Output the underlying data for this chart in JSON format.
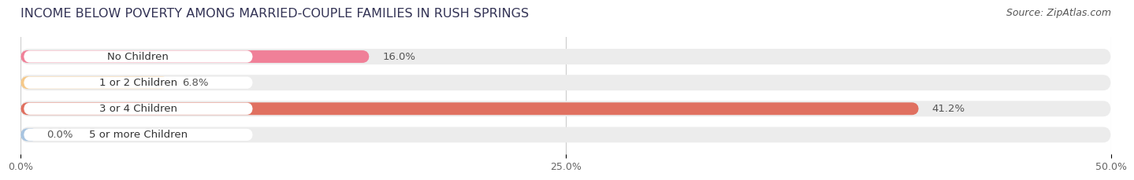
{
  "title": "INCOME BELOW POVERTY AMONG MARRIED-COUPLE FAMILIES IN RUSH SPRINGS",
  "source": "Source: ZipAtlas.com",
  "categories": [
    "No Children",
    "1 or 2 Children",
    "3 or 4 Children",
    "5 or more Children"
  ],
  "values": [
    16.0,
    6.8,
    41.2,
    0.0
  ],
  "bar_colors": [
    "#f08098",
    "#f5c98a",
    "#e07060",
    "#a8c4e0"
  ],
  "xlim": [
    0,
    50
  ],
  "xticks": [
    0.0,
    25.0,
    50.0
  ],
  "xticklabels": [
    "0.0%",
    "25.0%",
    "50.0%"
  ],
  "background_color": "#ffffff",
  "bar_background_color": "#ececec",
  "title_fontsize": 11.5,
  "source_fontsize": 9,
  "label_fontsize": 9.5,
  "tick_fontsize": 9
}
